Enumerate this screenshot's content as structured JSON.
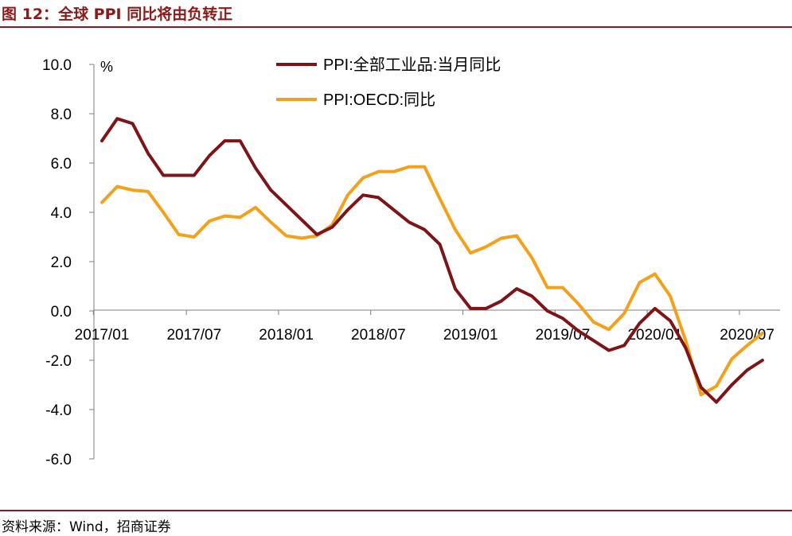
{
  "figure": {
    "label": "图 12：",
    "title": "全球 PPI 同比将由负转正",
    "source": "资料来源：Wind，招商证券"
  },
  "colors": {
    "accent": "#8B1A1A",
    "series_cn": "#7F1416",
    "series_oecd": "#F5A01A",
    "axis": "#7F7F7F"
  },
  "chart_data": {
    "type": "line",
    "ylabel": "%",
    "ylim": [
      -6.0,
      10.0
    ],
    "yticks": [
      "10.0",
      "8.0",
      "6.0",
      "4.0",
      "2.0",
      "0.0",
      "-2.0",
      "-4.0",
      "-6.0"
    ],
    "xtick_labels": [
      "2017/01",
      "2017/07",
      "2018/01",
      "2018/07",
      "2019/01",
      "2019/07",
      "2020/01",
      "2020/07"
    ],
    "legend_position": "top-center",
    "grid": false,
    "x": [
      "2017/01",
      "2017/02",
      "2017/03",
      "2017/04",
      "2017/05",
      "2017/06",
      "2017/07",
      "2017/08",
      "2017/09",
      "2017/10",
      "2017/11",
      "2017/12",
      "2018/01",
      "2018/02",
      "2018/03",
      "2018/04",
      "2018/05",
      "2018/06",
      "2018/07",
      "2018/08",
      "2018/09",
      "2018/10",
      "2018/11",
      "2018/12",
      "2019/01",
      "2019/02",
      "2019/03",
      "2019/04",
      "2019/05",
      "2019/06",
      "2019/07",
      "2019/08",
      "2019/09",
      "2019/10",
      "2019/11",
      "2019/12",
      "2020/01",
      "2020/02",
      "2020/03",
      "2020/04",
      "2020/05",
      "2020/06",
      "2020/07",
      "2020/08"
    ],
    "series": [
      {
        "name": "PPI:全部工业品:当月同比",
        "color": "#7F1416",
        "values": [
          6.9,
          7.8,
          7.6,
          6.4,
          5.5,
          5.5,
          5.5,
          6.3,
          6.9,
          6.9,
          5.8,
          4.9,
          4.3,
          3.7,
          3.1,
          3.4,
          4.1,
          4.7,
          4.6,
          4.1,
          3.6,
          3.3,
          2.7,
          0.9,
          0.1,
          0.1,
          0.4,
          0.9,
          0.6,
          0.0,
          -0.3,
          -0.8,
          -1.2,
          -1.6,
          -1.4,
          -0.5,
          0.1,
          -0.4,
          -1.5,
          -3.1,
          -3.7,
          -3.0,
          -2.4,
          -2.0
        ]
      },
      {
        "name": "PPI:OECD:同比",
        "color": "#F5A01A",
        "values": [
          4.4,
          5.05,
          4.9,
          4.85,
          4.0,
          3.1,
          3.0,
          3.65,
          3.85,
          3.8,
          4.2,
          3.6,
          3.05,
          2.95,
          3.05,
          3.5,
          4.7,
          5.4,
          5.65,
          5.65,
          5.85,
          5.85,
          4.55,
          3.3,
          2.35,
          2.6,
          2.95,
          3.05,
          2.15,
          0.95,
          0.95,
          0.3,
          -0.45,
          -0.75,
          -0.1,
          1.15,
          1.5,
          0.6,
          -1.2,
          -3.4,
          -3.05,
          -1.95,
          -1.4,
          -0.9
        ]
      }
    ]
  }
}
